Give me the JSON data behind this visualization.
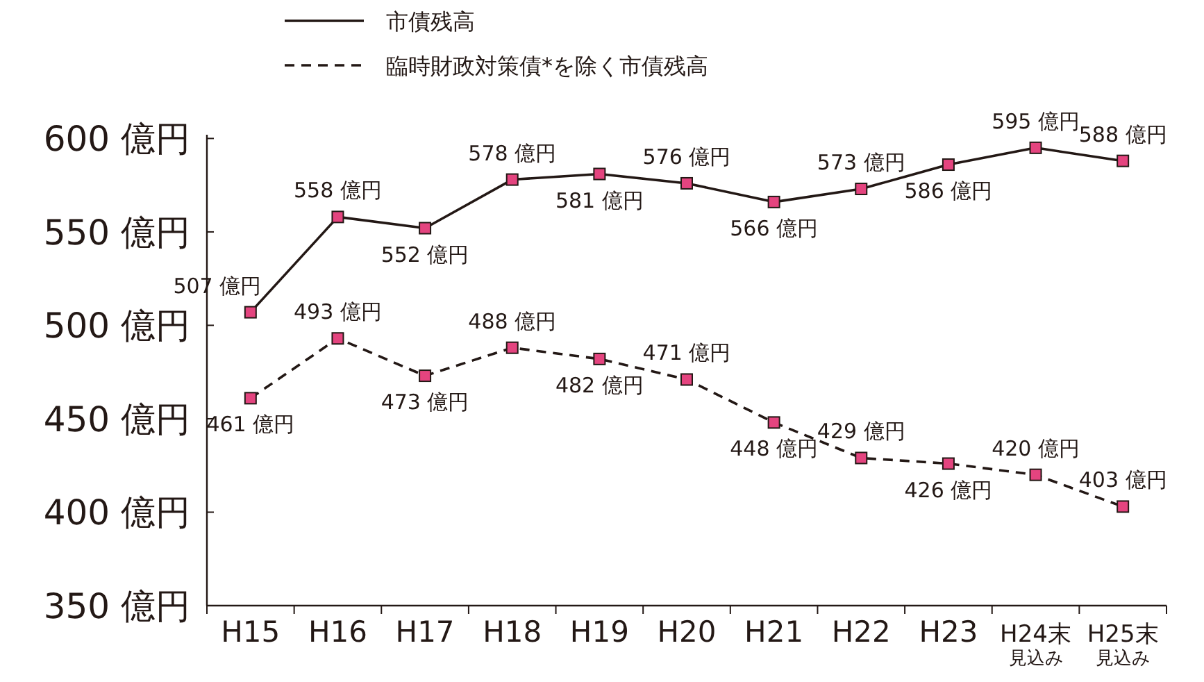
{
  "chart_data": {
    "type": "line",
    "categories": [
      "H15",
      "H16",
      "H17",
      "H18",
      "H19",
      "H20",
      "H21",
      "H22",
      "H23",
      "H24末$_{見込み}$",
      "H25末$_{見込み}$"
    ],
    "ylim": [
      350,
      602
    ],
    "yticks": [
      {
        "value": 350,
        "label": "350 億円"
      },
      {
        "value": 400,
        "label": "400 億円"
      },
      {
        "value": 450,
        "label": "450 億円"
      },
      {
        "value": 500,
        "label": "500 億円"
      },
      {
        "value": 550,
        "label": "550 億円"
      },
      {
        "value": 600,
        "label": "600 億円"
      }
    ],
    "grid": false,
    "legend": "top",
    "marker": "square",
    "series": [
      {
        "name": "市債残高",
        "color": "#231815",
        "line_style": "solid",
        "values": [
          507,
          558,
          552,
          578,
          581,
          576,
          566,
          573,
          586,
          595,
          588
        ],
        "value_labels": [
          "507 億円",
          "558 億円",
          "552 億円",
          "578 億円",
          "581 億円",
          "576 億円",
          "566 億円",
          "573 億円",
          "586 億円",
          "595 億円",
          "588 億円"
        ]
      },
      {
        "name": "臨時財政対策債*を除く市債残高",
        "color": "#231815",
        "line_style": "dashed",
        "values": [
          461,
          493,
          473,
          488,
          482,
          471,
          448,
          429,
          426,
          420,
          403
        ],
        "value_labels": [
          "461 億円",
          "493 億円",
          "473 億円",
          "488 億円",
          "482 億円",
          "471 億円",
          "448 億円",
          "429 億円",
          "426 億円",
          "420 億円",
          "403 億円"
        ]
      }
    ]
  }
}
